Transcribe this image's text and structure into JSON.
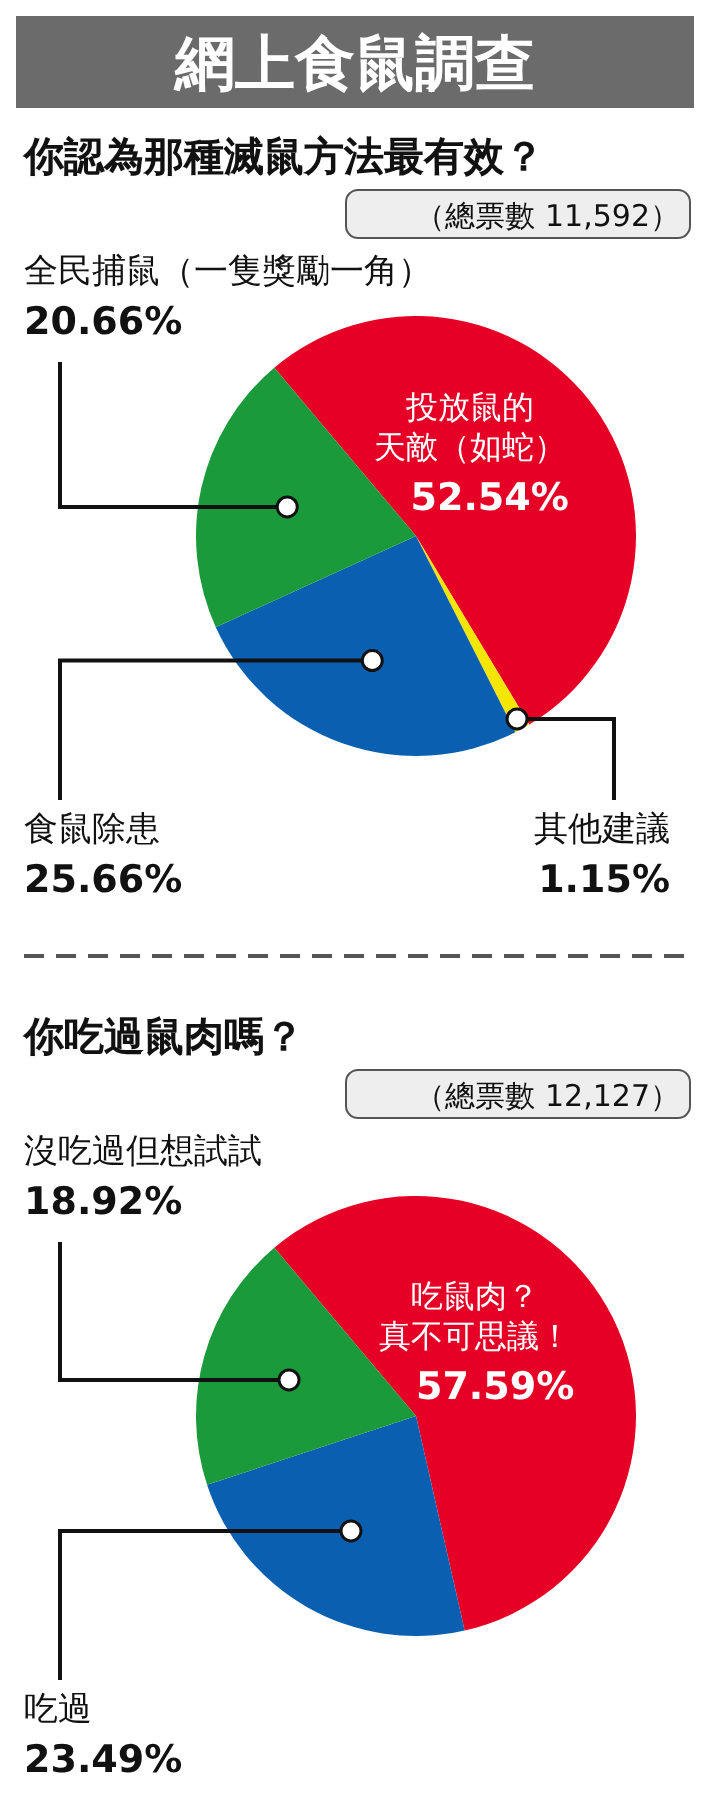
{
  "chart_data": [
    {
      "type": "pie",
      "title": "你認為那種滅鼠方法最有效？",
      "subtitle": "（總票數 11,592）",
      "annotations": [
        "網上食鼠調查"
      ],
      "categories": [
        "投放鼠的天敵（如蛇）",
        "其他建議",
        "食鼠除患",
        "全民捕鼠（一隻獎勵一角）"
      ],
      "values": [
        52.54,
        1.15,
        25.66,
        20.66
      ],
      "colors": [
        "#e60026",
        "#f5e600",
        "#0a5fb0",
        "#1a9a3a"
      ],
      "value_labels": [
        "52.54%",
        "1.15%",
        "25.66%",
        "20.66%"
      ]
    },
    {
      "type": "pie",
      "title": "你吃過鼠肉嗎？",
      "subtitle": "（總票數 12,127）",
      "categories": [
        "吃鼠肉？真不可思議！",
        "吃過",
        "沒吃過但想試試"
      ],
      "values": [
        57.59,
        23.49,
        18.92
      ],
      "colors": [
        "#e60026",
        "#0a5fb0",
        "#1a9a3a"
      ],
      "value_labels": [
        "57.59%",
        "23.49%",
        "18.92%"
      ]
    }
  ]
}
